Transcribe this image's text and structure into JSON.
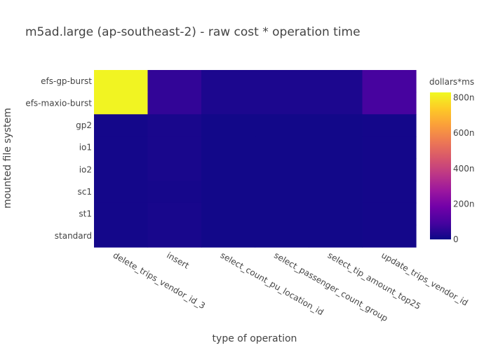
{
  "chart_data": {
    "type": "heatmap",
    "title": "m5ad.large (ap-southeast-2) - raw cost * operation time",
    "xlabel": "type of operation",
    "ylabel": "mounted file system",
    "x_categories": [
      "delete_trips_vendor_id_3",
      "insert",
      "select_count_pu_location_id",
      "select_passenger_count_group",
      "select_tip_amount_top25",
      "update_trips_vendor_id"
    ],
    "y_categories": [
      "efs-gp-burst",
      "efs-maxio-burst",
      "gp2",
      "io1",
      "io2",
      "sc1",
      "st1",
      "standard"
    ],
    "z": [
      [
        820,
        60,
        25,
        25,
        25,
        95
      ],
      [
        820,
        60,
        25,
        25,
        25,
        95
      ],
      [
        12,
        20,
        8,
        8,
        8,
        12
      ],
      [
        12,
        20,
        8,
        8,
        8,
        12
      ],
      [
        12,
        20,
        8,
        8,
        8,
        12
      ],
      [
        12,
        15,
        8,
        8,
        8,
        12
      ],
      [
        12,
        18,
        8,
        8,
        8,
        12
      ],
      [
        12,
        18,
        8,
        8,
        8,
        12
      ]
    ],
    "zlim": [
      0,
      830
    ],
    "colorbar": {
      "title": "dollars*ms",
      "ticks": [
        0,
        200,
        400,
        600,
        800
      ],
      "tick_labels": [
        "0",
        "200n",
        "400n",
        "600n",
        "800n"
      ],
      "colorscale": "plasma"
    },
    "grid": false
  }
}
